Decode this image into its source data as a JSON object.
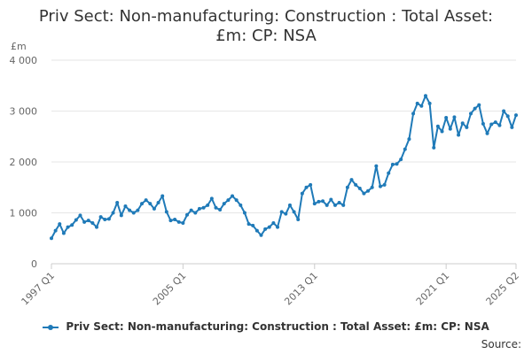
{
  "title_line1": "Priv Sect: Non-manufacturing: Construction : Total Asset:",
  "title_line2": "£m: CP: NSA",
  "source_label": "Source:",
  "chart_data": {
    "type": "line",
    "title": "Priv Sect: Non-manufacturing: Construction : Total Asset: £m: CP: NSA",
    "ylabel": "£m",
    "xlabel": "",
    "ylim": [
      0,
      4000
    ],
    "y_ticks": [
      0,
      1000,
      2000,
      3000,
      4000
    ],
    "y_tick_labels": [
      "0",
      "1 000",
      "2 000",
      "3 000",
      "4 000"
    ],
    "x_ticks": [
      "1997 Q1",
      "2005 Q1",
      "2013 Q1",
      "2021 Q1",
      "2025 Q2"
    ],
    "x_tick_indices": [
      0,
      32,
      64,
      96,
      113
    ],
    "legend_position": "bottom",
    "series": [
      {
        "name": "Priv Sect: Non-manufacturing: Construction : Total Asset: £m: CP: NSA",
        "color": "#1f7ab8",
        "start": "1997 Q1",
        "values": [
          500,
          650,
          780,
          600,
          720,
          760,
          860,
          950,
          820,
          850,
          800,
          720,
          920,
          870,
          880,
          1000,
          1200,
          950,
          1130,
          1050,
          1000,
          1050,
          1180,
          1250,
          1180,
          1080,
          1200,
          1330,
          1020,
          850,
          870,
          820,
          800,
          960,
          1050,
          1000,
          1080,
          1100,
          1150,
          1280,
          1100,
          1060,
          1180,
          1250,
          1330,
          1250,
          1150,
          1000,
          780,
          750,
          650,
          560,
          680,
          720,
          800,
          720,
          1020,
          980,
          1150,
          1020,
          870,
          1380,
          1500,
          1550,
          1180,
          1220,
          1230,
          1150,
          1260,
          1150,
          1200,
          1150,
          1500,
          1650,
          1550,
          1480,
          1380,
          1430,
          1500,
          1920,
          1520,
          1550,
          1780,
          1950,
          1960,
          2050,
          2250,
          2450,
          2950,
          3150,
          3100,
          3300,
          3150,
          2280,
          2700,
          2600,
          2870,
          2650,
          2880,
          2530,
          2760,
          2680,
          2950,
          3050,
          3120,
          2750,
          2560,
          2740,
          2780,
          2720,
          3000,
          2900,
          2680,
          2920
        ]
      }
    ]
  }
}
